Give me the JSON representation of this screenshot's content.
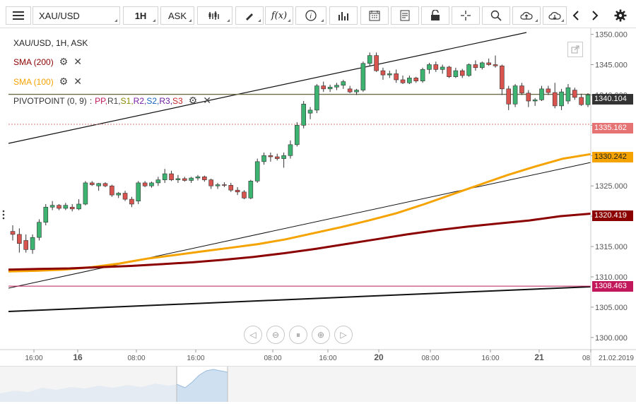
{
  "toolbar": {
    "symbol": "XAU/USD",
    "timeframe": "1H",
    "price_type": "ASK"
  },
  "legend": {
    "title": "XAU/USD, 1H, ASK",
    "sma200": "SMA (200)",
    "sma100": "SMA (100)",
    "pivot_name": "PIVOTPOINT (0, 9)",
    "pivot_sep": ":",
    "pivot_pp": "PP,",
    "pivot_r1": "R1,",
    "pivot_s1": "S1,",
    "pivot_r2": "R2,",
    "pivot_s2": "S2,",
    "pivot_r3": "R3,",
    "pivot_s3": "S3"
  },
  "axis": {
    "y_ticks": [
      "1350.000",
      "1345.000",
      "1340.000",
      "1335.000",
      "1330.000",
      "1325.000",
      "1320.000",
      "1315.000",
      "1310.000",
      "1305.000",
      "1300.000"
    ],
    "x_ticks": [
      "16:00",
      "16",
      "08:00",
      "16:00",
      "08:00",
      "16:00",
      "20",
      "08:00",
      "16:00",
      "21",
      "08"
    ],
    "date_label": "21.02.2019"
  },
  "price_labels": {
    "current": "1340.104",
    "pivot": "1335.162",
    "sma100": "1330.242",
    "sma200": "1320.419",
    "support": "1308.463"
  },
  "colors": {
    "sma200": "#8b0000",
    "sma100": "#f5a300",
    "pivot": "#e57373",
    "support": "#c2185b",
    "up": "#3cb371",
    "down": "#d9534f"
  },
  "chart_data": {
    "type": "candlestick",
    "y_range": [
      1298,
      1351
    ],
    "candles": [
      [
        1317.5,
        1318.5,
        1316.0,
        1317.0
      ],
      [
        1317.0,
        1318.0,
        1314.0,
        1315.5
      ],
      [
        1316.0,
        1317.0,
        1314.0,
        1314.5
      ],
      [
        1314.5,
        1317.0,
        1313.8,
        1316.5
      ],
      [
        1316.5,
        1319.5,
        1316.0,
        1319.0
      ],
      [
        1319.0,
        1322.0,
        1318.5,
        1321.5
      ],
      [
        1321.5,
        1322.5,
        1321.0,
        1321.8
      ],
      [
        1321.8,
        1322.0,
        1321.0,
        1321.3
      ],
      [
        1321.3,
        1322.2,
        1321.0,
        1321.8
      ],
      [
        1321.5,
        1322.0,
        1320.8,
        1321.2
      ],
      [
        1321.2,
        1322.8,
        1321.0,
        1322.0
      ],
      [
        1322.0,
        1325.8,
        1321.8,
        1325.5
      ],
      [
        1325.5,
        1325.8,
        1325.0,
        1325.2
      ],
      [
        1325.0,
        1325.5,
        1324.2,
        1325.4
      ],
      [
        1325.4,
        1325.6,
        1324.8,
        1325.0
      ],
      [
        1325.0,
        1325.2,
        1323.2,
        1323.5
      ],
      [
        1323.5,
        1324.0,
        1323.0,
        1323.8
      ],
      [
        1323.8,
        1324.2,
        1322.5,
        1322.8
      ],
      [
        1322.8,
        1323.2,
        1321.5,
        1322.0
      ],
      [
        1322.5,
        1325.8,
        1322.0,
        1325.5
      ],
      [
        1325.5,
        1325.8,
        1324.8,
        1325.0
      ],
      [
        1325.0,
        1325.7,
        1324.7,
        1325.5
      ],
      [
        1325.5,
        1326.5,
        1325.0,
        1326.0
      ],
      [
        1326.0,
        1327.8,
        1325.5,
        1327.0
      ],
      [
        1327.0,
        1327.5,
        1325.8,
        1326.0
      ],
      [
        1326.0,
        1326.8,
        1325.5,
        1326.2
      ],
      [
        1326.2,
        1326.5,
        1325.7,
        1325.9
      ],
      [
        1325.9,
        1326.5,
        1325.5,
        1326.3
      ],
      [
        1326.3,
        1326.8,
        1325.9,
        1326.5
      ],
      [
        1326.5,
        1326.7,
        1325.7,
        1326.0
      ],
      [
        1326.0,
        1326.2,
        1324.5,
        1325.0
      ],
      [
        1325.0,
        1325.5,
        1324.5,
        1325.2
      ],
      [
        1325.2,
        1325.6,
        1324.8,
        1325.1
      ],
      [
        1325.1,
        1325.5,
        1324.0,
        1324.3
      ],
      [
        1324.3,
        1324.8,
        1323.5,
        1324.0
      ],
      [
        1324.0,
        1324.3,
        1322.8,
        1323.0
      ],
      [
        1323.0,
        1326.0,
        1322.8,
        1325.8
      ],
      [
        1325.8,
        1329.5,
        1325.5,
        1329.0
      ],
      [
        1329.0,
        1330.5,
        1328.5,
        1330.0
      ],
      [
        1330.0,
        1330.5,
        1329.0,
        1329.8
      ],
      [
        1329.8,
        1330.3,
        1329.2,
        1329.5
      ],
      [
        1329.5,
        1330.5,
        1328.0,
        1330.0
      ],
      [
        1330.0,
        1332.5,
        1329.5,
        1331.8
      ],
      [
        1331.8,
        1335.5,
        1331.5,
        1335.0
      ],
      [
        1335.0,
        1339.0,
        1334.5,
        1338.5
      ],
      [
        1337.0,
        1338.0,
        1336.0,
        1337.5
      ],
      [
        1337.5,
        1341.8,
        1337.0,
        1341.5
      ],
      [
        1341.5,
        1342.2,
        1340.5,
        1341.0
      ],
      [
        1341.0,
        1341.7,
        1340.5,
        1341.3
      ],
      [
        1341.3,
        1342.0,
        1340.8,
        1341.6
      ],
      [
        1341.6,
        1342.5,
        1341.0,
        1342.2
      ],
      [
        1341.0,
        1341.5,
        1340.3,
        1340.5
      ],
      [
        1340.5,
        1341.0,
        1340.0,
        1340.8
      ],
      [
        1340.8,
        1345.5,
        1340.5,
        1345.2
      ],
      [
        1345.2,
        1347.0,
        1344.8,
        1346.5
      ],
      [
        1346.5,
        1347.0,
        1343.8,
        1344.0
      ],
      [
        1344.0,
        1344.5,
        1342.5,
        1343.3
      ],
      [
        1343.3,
        1344.0,
        1342.8,
        1343.5
      ],
      [
        1343.5,
        1344.2,
        1342.0,
        1342.5
      ],
      [
        1342.5,
        1343.2,
        1341.8,
        1342.0
      ],
      [
        1342.0,
        1343.2,
        1341.8,
        1342.8
      ],
      [
        1342.8,
        1343.0,
        1342.0,
        1342.3
      ],
      [
        1342.3,
        1344.5,
        1342.0,
        1344.2
      ],
      [
        1344.2,
        1345.3,
        1343.5,
        1345.0
      ],
      [
        1345.0,
        1345.5,
        1343.8,
        1344.2
      ],
      [
        1344.2,
        1345.0,
        1343.5,
        1344.6
      ],
      [
        1344.6,
        1344.8,
        1342.8,
        1343.0
      ],
      [
        1343.0,
        1344.5,
        1342.8,
        1344.0
      ],
      [
        1344.0,
        1344.3,
        1342.8,
        1343.2
      ],
      [
        1343.2,
        1345.2,
        1343.0,
        1345.0
      ],
      [
        1345.0,
        1345.7,
        1344.0,
        1344.5
      ],
      [
        1344.5,
        1345.5,
        1344.2,
        1345.3
      ],
      [
        1345.3,
        1346.0,
        1344.8,
        1345.0
      ],
      [
        1345.0,
        1346.5,
        1344.5,
        1344.8
      ],
      [
        1344.8,
        1345.0,
        1340.0,
        1341.0
      ],
      [
        1341.0,
        1341.5,
        1337.5,
        1338.5
      ],
      [
        1338.5,
        1341.8,
        1338.0,
        1341.5
      ],
      [
        1341.5,
        1342.0,
        1340.0,
        1340.3
      ],
      [
        1340.3,
        1340.8,
        1338.0,
        1339.0
      ],
      [
        1339.0,
        1339.5,
        1338.2,
        1339.2
      ],
      [
        1339.2,
        1341.5,
        1339.0,
        1341.0
      ],
      [
        1341.0,
        1341.5,
        1340.0,
        1340.4
      ],
      [
        1340.4,
        1342.0,
        1337.8,
        1338.2
      ],
      [
        1338.2,
        1341.0,
        1337.5,
        1340.5
      ],
      [
        1339.0,
        1341.8,
        1338.5,
        1341.2
      ],
      [
        1340.8,
        1341.2,
        1339.2,
        1339.6
      ],
      [
        1339.6,
        1340.2,
        1338.2,
        1338.4
      ],
      [
        1338.4,
        1340.3,
        1338.0,
        1340.0
      ]
    ],
    "sma100": [
      1310.9,
      1311.0,
      1311.2,
      1311.6,
      1312.2,
      1313.0,
      1313.6,
      1314.2,
      1314.8,
      1315.4,
      1316.2,
      1317.2,
      1318.2,
      1319.3,
      1320.5,
      1322.0,
      1323.6,
      1325.2,
      1326.8,
      1328.2,
      1329.5,
      1330.242
    ],
    "sma200": [
      1311.2,
      1311.3,
      1311.4,
      1311.6,
      1311.8,
      1312.1,
      1312.4,
      1312.8,
      1313.3,
      1313.9,
      1314.6,
      1315.4,
      1316.2,
      1317.0,
      1317.7,
      1318.3,
      1318.8,
      1319.3,
      1320.0,
      1320.419
    ],
    "pivot": 1335.162,
    "pp_line": 1340.104,
    "support_line": 1308.463
  }
}
